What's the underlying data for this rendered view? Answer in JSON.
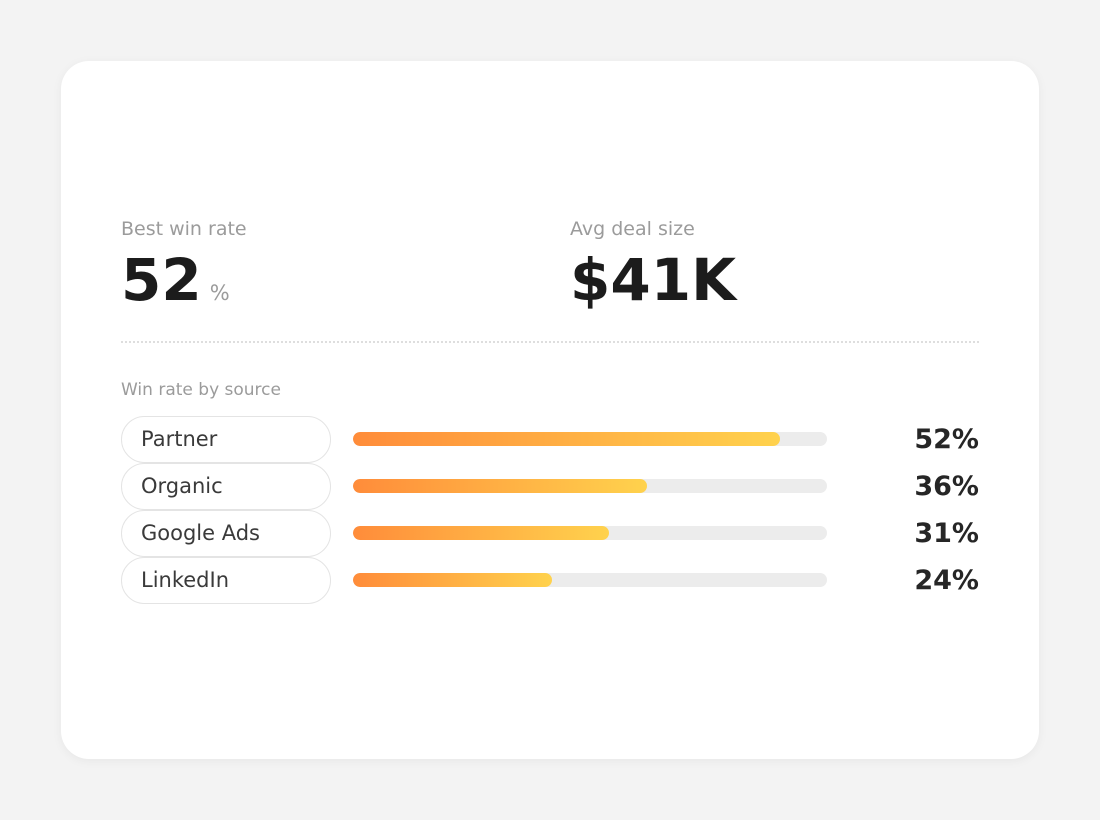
{
  "stats": {
    "best_win_rate": {
      "label": "Best win rate",
      "value": "52",
      "unit": "%"
    },
    "avg_deal_size": {
      "label": "Avg deal size",
      "value": "$41K"
    }
  },
  "win_rate_by_source": {
    "title": "Win rate by source",
    "rows": [
      {
        "source": "Partner",
        "percent_label": "52%",
        "fill_fraction": 0.9
      },
      {
        "source": "Organic",
        "percent_label": "36%",
        "fill_fraction": 0.62
      },
      {
        "source": "Google Ads",
        "percent_label": "31%",
        "fill_fraction": 0.54
      },
      {
        "source": "LinkedIn",
        "percent_label": "24%",
        "fill_fraction": 0.42
      }
    ]
  },
  "colors": {
    "bar_gradient_start": "#ff8c3a",
    "bar_gradient_end": "#ffd24d",
    "track": "#ececec"
  }
}
